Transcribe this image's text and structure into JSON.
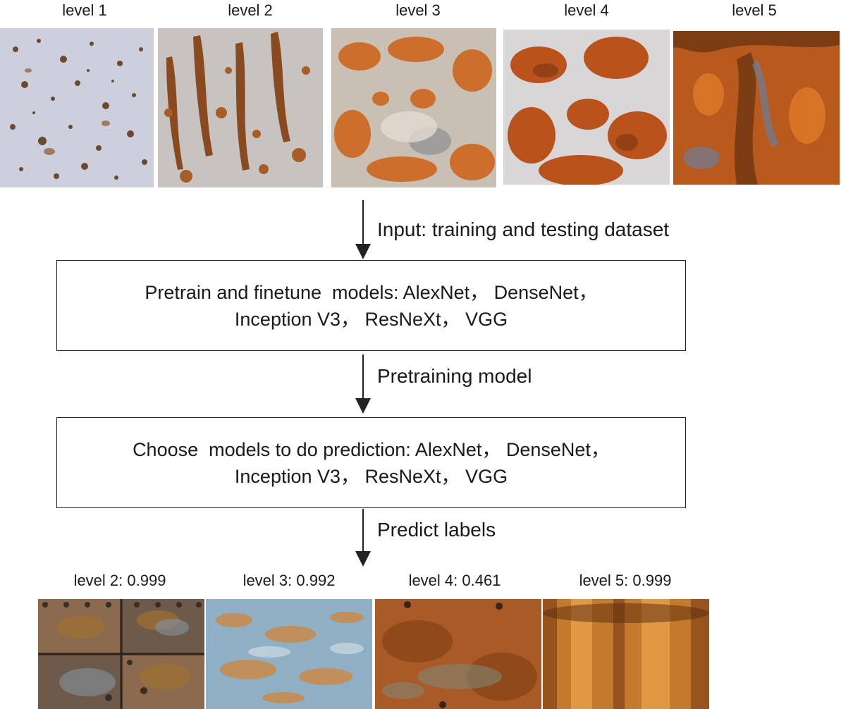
{
  "input_levels": [
    {
      "label": "level 1",
      "texture": "light-grey-spotted"
    },
    {
      "label": "level 2",
      "texture": "streaked-rust"
    },
    {
      "label": "level 3",
      "texture": "patchy-orange"
    },
    {
      "label": "level 4",
      "texture": "heavy-blotches"
    },
    {
      "label": "level 5",
      "texture": "full-rust"
    }
  ],
  "steps": {
    "input_label": "Input: training and testing dataset",
    "box1": {
      "line1": "Pretrain and finetune  models: AlexNet， DenseNet，",
      "line2": "Inception V3， ResNeXt， VGG"
    },
    "pretraining_label": "Pretraining model",
    "box2": {
      "line1": "Choose  models to do prediction: AlexNet， DenseNet，",
      "line2": "Inception V3， ResNeXt， VGG"
    },
    "predict_label": "Predict labels"
  },
  "predictions": [
    {
      "label": "level 2: 0.999",
      "texture": "riveted-plates"
    },
    {
      "label": "level 3: 0.992",
      "texture": "blue-flaking"
    },
    {
      "label": "level 4: 0.461",
      "texture": "brown-orange"
    },
    {
      "label": "level 5: 0.999",
      "texture": "gold-rust"
    }
  ],
  "colors": {
    "rust": "#c0601f",
    "dark_rust": "#7a3a16",
    "steel": "#c8ccd6",
    "line": "#222222"
  }
}
